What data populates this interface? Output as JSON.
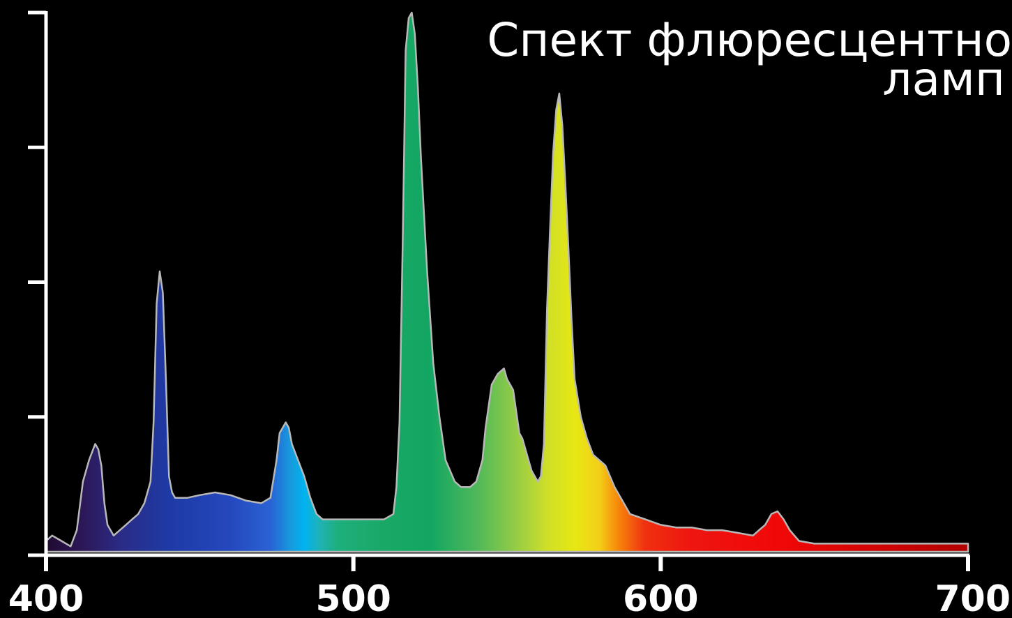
{
  "chart_data": {
    "type": "area",
    "title_lines": [
      "Спект флюресцентно",
      "ламп"
    ],
    "xlabel": "",
    "ylabel": "",
    "xlim": [
      400,
      700
    ],
    "ylim": [
      0,
      100
    ],
    "x_ticks": [
      400,
      500,
      600,
      700
    ],
    "x_tick_labels": [
      "400",
      "500",
      "600",
      "700"
    ],
    "y_ticks": [
      0,
      25,
      50,
      75,
      100
    ],
    "grid": false,
    "series": [
      {
        "x": [
          400,
          402,
          405,
          408,
          410,
          412,
          414,
          416,
          417,
          418,
          419,
          420,
          422,
          424,
          426,
          428,
          430,
          432,
          434,
          435,
          436,
          437,
          438,
          438.5,
          439,
          440,
          441,
          442,
          444,
          446,
          450,
          455,
          460,
          465,
          470,
          473,
          475,
          476,
          477,
          478,
          479,
          480,
          482,
          484,
          486,
          488,
          490,
          495,
          500,
          505,
          510,
          513,
          514,
          515,
          516,
          516.5,
          517,
          518,
          519,
          520,
          521,
          522,
          524,
          526,
          528,
          530,
          533,
          535,
          538,
          540,
          541,
          542,
          543,
          544,
          545,
          547,
          549,
          550,
          552,
          553,
          554,
          555,
          556,
          557,
          558,
          559,
          560,
          561,
          562,
          563,
          564,
          565,
          566,
          567,
          568,
          569,
          570,
          571,
          572,
          574,
          576,
          578,
          580,
          582,
          585,
          590,
          595,
          600,
          605,
          610,
          615,
          620,
          625,
          630,
          632,
          634,
          636,
          638,
          640,
          642,
          645,
          650,
          660,
          670,
          680,
          690,
          700
        ],
        "y": [
          2,
          3,
          2,
          1,
          4,
          13,
          17,
          20,
          19,
          16,
          9,
          5,
          3,
          4,
          5,
          6,
          7,
          9,
          13,
          24,
          46,
          52,
          48,
          40,
          32,
          14,
          11,
          10,
          10,
          10,
          10.5,
          11,
          10.5,
          9.5,
          9,
          10,
          17,
          22,
          23,
          24,
          23,
          20,
          17,
          14,
          10,
          7,
          6,
          6,
          6,
          6,
          6,
          7,
          12,
          24,
          56,
          74,
          93,
          99,
          100,
          96,
          86,
          73,
          52,
          35,
          25,
          17,
          13,
          12,
          12,
          13,
          15,
          17,
          23,
          27,
          31,
          33,
          34,
          32,
          30,
          26,
          22,
          21,
          19,
          17,
          15,
          14,
          13,
          14,
          20,
          45,
          60,
          74,
          82,
          85,
          79,
          68,
          56,
          43,
          32,
          25,
          21,
          18,
          17,
          16,
          12,
          7,
          6,
          5,
          4.5,
          4.5,
          4,
          4,
          3.5,
          3,
          4,
          5,
          7,
          7.5,
          6,
          4,
          2,
          1.5,
          1.5,
          1.5,
          1.5,
          1.5,
          1.5
        ]
      }
    ],
    "colors": {
      "background": "#000000",
      "axis": "#ffffff",
      "outline": "#b8b8b8",
      "spectrum_stops": [
        {
          "x": 400,
          "color": "#200b30"
        },
        {
          "x": 412,
          "color": "#2c1858"
        },
        {
          "x": 425,
          "color": "#2a2c88"
        },
        {
          "x": 440,
          "color": "#1e3aa5"
        },
        {
          "x": 460,
          "color": "#2448bd"
        },
        {
          "x": 473,
          "color": "#2a62d4"
        },
        {
          "x": 480,
          "color": "#169dde"
        },
        {
          "x": 484,
          "color": "#00b2f0"
        },
        {
          "x": 489,
          "color": "#1fb2b5"
        },
        {
          "x": 495,
          "color": "#1eaf7c"
        },
        {
          "x": 510,
          "color": "#1aa867"
        },
        {
          "x": 525,
          "color": "#12a662"
        },
        {
          "x": 540,
          "color": "#4eb85a"
        },
        {
          "x": 553,
          "color": "#95cc46"
        },
        {
          "x": 563,
          "color": "#cfdf28"
        },
        {
          "x": 572,
          "color": "#e7e714"
        },
        {
          "x": 580,
          "color": "#f4cf18"
        },
        {
          "x": 586,
          "color": "#f6890a"
        },
        {
          "x": 595,
          "color": "#f03010"
        },
        {
          "x": 610,
          "color": "#ee1510"
        },
        {
          "x": 640,
          "color": "#f00707"
        },
        {
          "x": 700,
          "color": "#b00000"
        }
      ]
    }
  }
}
